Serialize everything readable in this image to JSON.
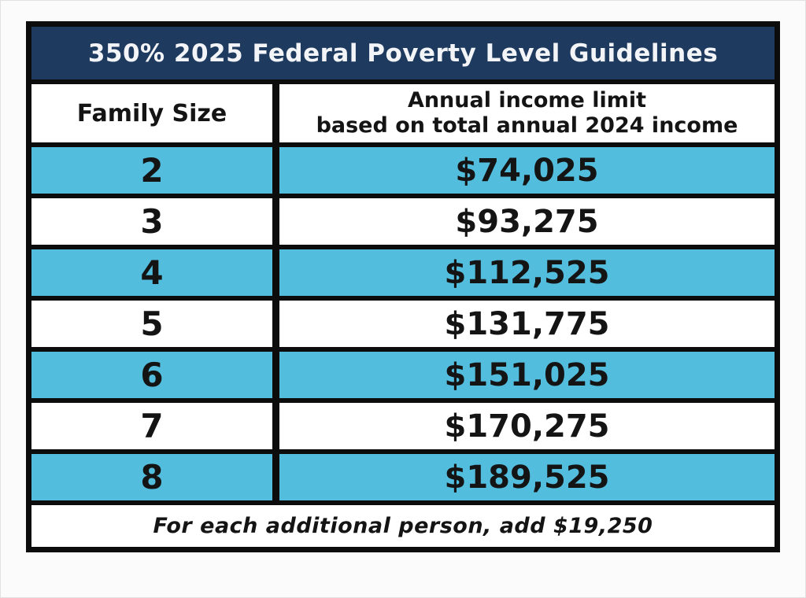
{
  "table": {
    "title": "350% 2025 Federal Poverty Level Guidelines",
    "columns": {
      "family_size": "Family Size",
      "income_line1": "Annual income limit",
      "income_line2": "based on total annual 2024 income"
    },
    "rows": [
      {
        "family_size": "2",
        "income_limit": "$74,025"
      },
      {
        "family_size": "3",
        "income_limit": "$93,275"
      },
      {
        "family_size": "4",
        "income_limit": "$112,525"
      },
      {
        "family_size": "5",
        "income_limit": "$131,775"
      },
      {
        "family_size": "6",
        "income_limit": "$151,025"
      },
      {
        "family_size": "7",
        "income_limit": "$170,275"
      },
      {
        "family_size": "8",
        "income_limit": "$189,525"
      }
    ],
    "footer": "For each additional person, add $19,250",
    "colors": {
      "header_bg": "#1e3a5f",
      "row_highlight": "#53bdde",
      "border": "#0c0c0c",
      "text": "#141414",
      "title_text": "#f2f4f7",
      "page_bg": "#fbfbfb"
    }
  },
  "chart_data": {
    "type": "table",
    "title": "350% 2025 Federal Poverty Level Guidelines",
    "columns": [
      "Family Size",
      "Annual income limit based on total annual 2024 income"
    ],
    "rows": [
      [
        2,
        74025
      ],
      [
        3,
        93275
      ],
      [
        4,
        112525
      ],
      [
        5,
        131775
      ],
      [
        6,
        151025
      ],
      [
        7,
        170275
      ],
      [
        8,
        189525
      ]
    ],
    "footer_note": "For each additional person, add $19,250"
  }
}
